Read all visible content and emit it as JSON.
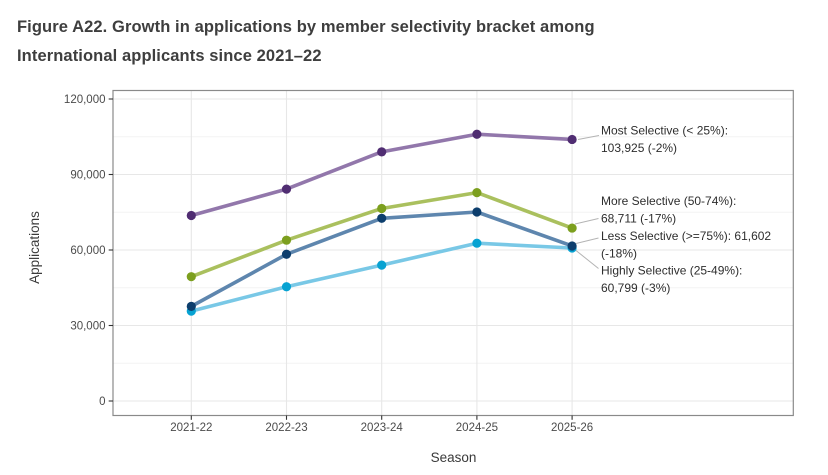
{
  "figure_title": {
    "lines": [
      "Figure A22. Growth in applications by member selectivity bracket among",
      "International applicants since 2021–22"
    ],
    "color": "#3e3e3e"
  },
  "chart_data": {
    "type": "line",
    "title": "Figure A22. Growth in applications by member selectivity bracket among International applicants since 2021–22",
    "xlabel": "Season",
    "ylabel": "Applications",
    "categories": [
      "2021-22",
      "2022-23",
      "2023-24",
      "2024-25",
      "2025-26"
    ],
    "ylim": [
      0,
      120000
    ],
    "y_major_ticks": [
      {
        "value": 0,
        "label": "0"
      },
      {
        "value": 30000,
        "label": "30,000"
      },
      {
        "value": 60000,
        "label": "60,000"
      },
      {
        "value": 90000,
        "label": "90,000"
      },
      {
        "value": 120000,
        "label": "120,000"
      }
    ],
    "y_minor_ticks": [
      15000,
      45000,
      75000,
      105000
    ],
    "grid": {
      "show": true,
      "major_color": "#e7e7e7",
      "minor_color": "#f3f3f3",
      "panel_border_color": "#8a8a8a",
      "background": "#ffffff"
    },
    "legend_position": "right-annotations",
    "series": [
      {
        "name": "Most Selective (< 25%)",
        "values": [
          73700,
          84200,
          99000,
          106000,
          103925
        ],
        "final_value": "103,925",
        "change": "-2%",
        "line_color": "#9277ab",
        "point_color": "#502d72",
        "annotation_lines": [
          "Most Selective (< 25%):",
          "103,925 (-2%)"
        ]
      },
      {
        "name": "More Selective (50-74%)",
        "values": [
          49400,
          63900,
          76500,
          82800,
          68711
        ],
        "final_value": "68,711",
        "change": "-17%",
        "line_color": "#aac05e",
        "point_color": "#7c9f1e",
        "annotation_lines": [
          "More Selective (50-74%):",
          "68,711 (-17%)"
        ]
      },
      {
        "name": "Less Selective (>=75%)",
        "values": [
          37600,
          58300,
          72600,
          75100,
          61602
        ],
        "final_value": "61,602",
        "change": "-18%",
        "line_color": "#5e86ae",
        "point_color": "#0d3e6d",
        "annotation_lines": [
          "Less Selective (>=75%): 61,602",
          "(-18%)"
        ]
      },
      {
        "name": "Highly Selective (25-49%)",
        "values": [
          35700,
          45400,
          54000,
          62700,
          60799
        ],
        "final_value": "60,799",
        "change": "-3%",
        "line_color": "#79c8e6",
        "point_color": "#06a2d2",
        "annotation_lines": [
          "Highly Selective (25-49%):",
          "60,799 (-3%)"
        ]
      }
    ],
    "axis_text_color": "#4b4b4b",
    "axis_title_color": "#3a3a3a",
    "tick_mark_color": "#333333",
    "annotation_text_color": "#2e2e2e",
    "leader_line_color": "#b4b4b4"
  }
}
